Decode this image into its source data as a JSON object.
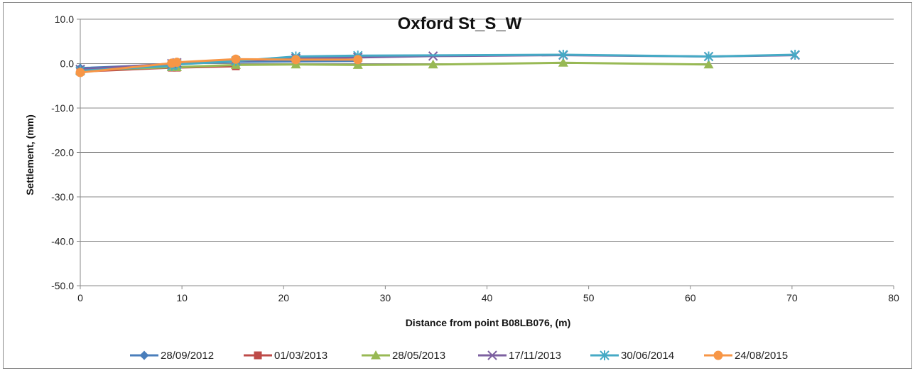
{
  "chart_data": {
    "type": "line",
    "title": "Oxford St_S_W",
    "xlabel": "Distance from point B08LB076, (m)",
    "ylabel": "Settlement, (mm)",
    "xlim": [
      0,
      80
    ],
    "ylim": [
      -50,
      10
    ],
    "xticks": [
      0,
      10,
      20,
      30,
      40,
      50,
      60,
      70,
      80
    ],
    "yticks": [
      10,
      0,
      -10,
      -20,
      -30,
      -40,
      -50
    ],
    "ytick_labels": [
      "10.0",
      "0.0",
      "-10.0",
      "-20.0",
      "-30.0",
      "-40.0",
      "-50.0"
    ],
    "grid": "horizontal",
    "legend_position": "bottom",
    "series": [
      {
        "name": "28/09/2012",
        "color": "#4a7ebb",
        "marker": "diamond",
        "x": [
          0,
          9,
          9.5,
          15.3,
          21.2,
          27.3
        ],
        "y": [
          -1.0,
          -0.2,
          0.0,
          0.4,
          0.5,
          0.6
        ]
      },
      {
        "name": "01/03/2013",
        "color": "#be4b48",
        "marker": "square",
        "x": [
          0,
          9,
          9.5,
          15.3
        ],
        "y": [
          -1.8,
          -0.9,
          -0.9,
          -0.6
        ]
      },
      {
        "name": "28/05/2013",
        "color": "#98b954",
        "marker": "triangle",
        "x": [
          0,
          9,
          9.5,
          15.3,
          21.2,
          27.3,
          34.7,
          47.5,
          61.8
        ],
        "y": [
          -1.5,
          -0.8,
          -0.8,
          -0.3,
          -0.2,
          -0.3,
          -0.2,
          0.2,
          -0.2
        ]
      },
      {
        "name": "17/11/2013",
        "color": "#7d60a0",
        "marker": "x",
        "x": [
          0,
          9,
          9.5,
          15.3,
          21.2,
          27.3,
          34.7,
          47.5,
          61.8,
          70.3
        ],
        "y": [
          -1.3,
          0.0,
          0.2,
          0.6,
          1.2,
          1.4,
          1.7,
          1.9,
          1.6,
          1.9
        ]
      },
      {
        "name": "30/06/2014",
        "color": "#46aac5",
        "marker": "star",
        "x": [
          0,
          9,
          9.5,
          15.3,
          21.2,
          27.3,
          47.5,
          61.8,
          70.3
        ],
        "y": [
          -1.6,
          -0.5,
          -0.2,
          0.6,
          1.6,
          1.8,
          2.0,
          1.6,
          2.0
        ]
      },
      {
        "name": "24/08/2015",
        "color": "#f79646",
        "marker": "circle",
        "x": [
          0,
          9,
          9.5,
          15.3,
          21.2,
          27.3
        ],
        "y": [
          -2.0,
          0.1,
          0.3,
          1.0,
          0.9,
          0.9
        ]
      }
    ]
  }
}
